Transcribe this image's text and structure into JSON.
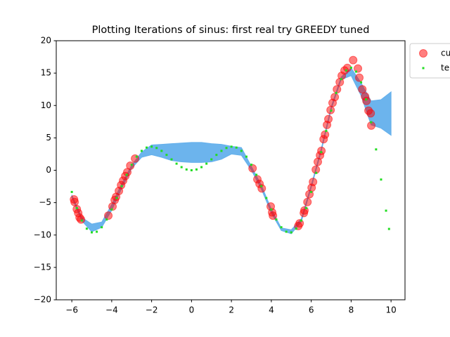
{
  "chart_data": {
    "type": "scatter",
    "title": "Plotting Iterations of sinus: first real try GREEDY tuned",
    "xlim": [
      -6.78,
      10.7
    ],
    "ylim": [
      -20,
      20
    ],
    "xticks": [
      {
        "value": -6,
        "label": "−6"
      },
      {
        "value": -4,
        "label": "−4"
      },
      {
        "value": -2,
        "label": "−2"
      },
      0,
      2,
      4,
      6,
      8,
      10
    ],
    "yticks": [
      {
        "value": -20,
        "label": "−20"
      },
      {
        "value": -15,
        "label": "−15"
      },
      {
        "value": -10,
        "label": "−10"
      },
      {
        "value": -5,
        "label": "−5"
      },
      0,
      5,
      10,
      15,
      20
    ],
    "legend": "outside-upper-right",
    "band": {
      "color": "#64b0ec",
      "x": [
        -6,
        -5.5,
        -5,
        -4.5,
        -4,
        -3.5,
        -3,
        -2.5,
        -2,
        -1.5,
        -1,
        -0.5,
        0,
        0.5,
        1,
        1.5,
        2,
        2.5,
        3,
        3.5,
        4,
        4.5,
        5,
        5.5,
        6,
        6.5,
        7,
        7.5,
        8,
        8.5,
        9,
        9.5,
        10
      ],
      "upper": [
        -3.8,
        -7.3,
        -8.3,
        -8.0,
        -5.3,
        -2.1,
        0.8,
        2.8,
        3.9,
        4.0,
        4.1,
        4.2,
        4.3,
        4.3,
        4.1,
        4.0,
        3.7,
        3.5,
        0.6,
        -2.3,
        -6.0,
        -8.9,
        -9.2,
        -7.5,
        -2.3,
        3.3,
        9.8,
        14.4,
        15.8,
        13.5,
        10.7,
        10.9,
        12.1
      ],
      "lower": [
        -4.2,
        -7.8,
        -9.5,
        -8.8,
        -6.2,
        -2.8,
        0.3,
        2.0,
        2.4,
        2.0,
        1.5,
        1.3,
        1.2,
        1.2,
        1.3,
        1.7,
        2.5,
        2.3,
        0.0,
        -2.9,
        -6.6,
        -9.3,
        -9.8,
        -8.0,
        -2.7,
        2.9,
        9.4,
        14.0,
        14.6,
        11.5,
        7.0,
        6.5,
        5.4
      ]
    },
    "series": [
      {
        "name": "cu",
        "color": "#ff0000",
        "x": [
          -5.89,
          -5.86,
          -5.75,
          -5.68,
          -5.61,
          -5.54,
          -4.17,
          -3.96,
          -3.85,
          -3.78,
          -3.64,
          -3.53,
          -3.43,
          -3.32,
          -3.22,
          -3.07,
          -2.83,
          3.06,
          3.3,
          3.41,
          3.52,
          3.97,
          4.04,
          4.08,
          5.35,
          5.42,
          5.63,
          5.66,
          5.81,
          5.91,
          6.02,
          6.09,
          6.23,
          6.33,
          6.44,
          6.51,
          6.62,
          6.69,
          6.79,
          6.86,
          6.97,
          7.07,
          7.18,
          7.29,
          7.43,
          7.53,
          7.67,
          7.81,
          8.1,
          8.34,
          8.41,
          8.56,
          8.7,
          8.77,
          8.87,
          8.98,
          9.01
        ],
        "values": [
          -4.5,
          -4.9,
          -6.0,
          -6.6,
          -7.3,
          -7.6,
          -7.0,
          -5.6,
          -4.6,
          -4.1,
          -3.2,
          -2.3,
          -1.6,
          -0.9,
          -0.3,
          0.7,
          1.8,
          0.3,
          -1.4,
          -2.1,
          -2.8,
          -5.6,
          -6.5,
          -7.0,
          -8.6,
          -8.2,
          -6.6,
          -6.2,
          -4.9,
          -3.7,
          -2.7,
          -1.8,
          0.1,
          1.3,
          2.3,
          3.0,
          4.8,
          5.5,
          7.0,
          7.9,
          9.3,
          10.4,
          11.3,
          12.5,
          13.6,
          14.6,
          15.4,
          15.8,
          17.0,
          15.7,
          14.3,
          12.5,
          11.4,
          10.7,
          9.2,
          8.8,
          6.9
        ]
      },
      {
        "name": "te",
        "color": "#22dd22",
        "x": [
          -6,
          -5.75,
          -5.5,
          -5.25,
          -5,
          -4.75,
          -4.5,
          -4.25,
          -4,
          -3.75,
          -3.5,
          -3.25,
          -3,
          -2.75,
          -2.5,
          -2.25,
          -2,
          -1.75,
          -1.5,
          -1.25,
          -1,
          -0.75,
          -0.5,
          -0.25,
          0,
          0.25,
          0.5,
          0.75,
          1,
          1.25,
          1.5,
          1.75,
          2,
          2.25,
          2.5,
          2.75,
          3,
          3.25,
          3.5,
          3.75,
          4,
          4.25,
          4.5,
          4.75,
          5,
          5.25,
          5.5,
          5.75,
          6,
          6.25,
          6.5,
          6.75,
          7,
          7.25,
          7.5,
          7.75,
          8,
          8.25,
          8.5,
          8.75,
          9,
          9.25,
          9.5,
          9.75,
          9.9
        ],
        "values": [
          -3.35,
          -5.85,
          -7.76,
          -9.02,
          -9.59,
          -9.49,
          -8.8,
          -7.61,
          -6.05,
          -4.29,
          -2.46,
          -0.7,
          0.85,
          2.1,
          2.99,
          3.5,
          3.64,
          3.44,
          2.99,
          2.37,
          1.68,
          1.02,
          0.48,
          0.12,
          0,
          0.12,
          0.48,
          1.02,
          1.68,
          2.37,
          2.99,
          3.44,
          3.64,
          3.5,
          2.99,
          2.1,
          0.85,
          -0.7,
          -2.46,
          -4.29,
          -6.05,
          -7.61,
          -8.8,
          -9.49,
          -9.59,
          -9.02,
          -7.76,
          -5.85,
          -3.35,
          -0.41,
          2.8,
          6.08,
          9.2,
          11.93,
          14.07,
          15.42,
          15.83,
          15.23,
          13.57,
          10.93,
          7.42,
          3.22,
          -1.43,
          -6.24,
          -9.06
        ]
      }
    ]
  }
}
